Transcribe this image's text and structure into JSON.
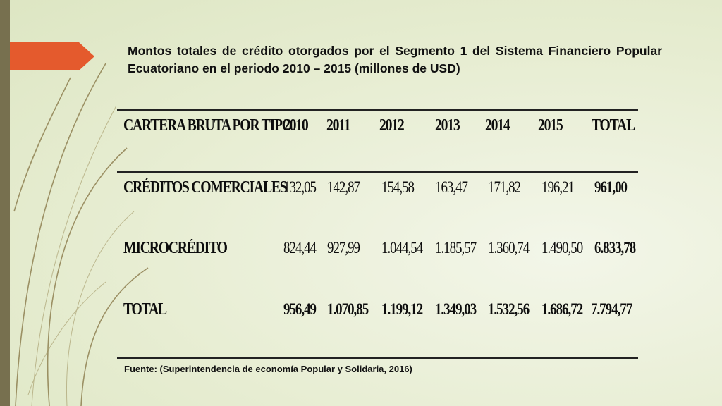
{
  "slide": {
    "title": "Montos totales de crédito  otorgados por el Segmento 1 del Sistema Financiero Popular Ecuatoriano en el periodo 2010 – 2015 (millones de USD)",
    "source": "Fuente: (Superintendencia de economía Popular y Solidaria, 2016)",
    "colors": {
      "left_bar": "#77704f",
      "arrow": "#e45a2d",
      "deco_lines": "#8a7a4a"
    }
  },
  "table": {
    "headers": [
      "CARTERA BRUTA POR TIPO",
      "2010",
      "2011",
      "2012",
      "2013",
      "2014",
      "2015",
      "TOTAL"
    ],
    "rows": [
      {
        "label": "CRÉDITOS COMERCIALES",
        "values": [
          "132,05",
          "142,87",
          "154,58",
          "163,47",
          "171,82",
          "196,21"
        ],
        "total": "961,00"
      },
      {
        "label": "MICROCRÉDITO",
        "values": [
          "824,44",
          "927,99",
          "1.044,54",
          "1.185,57",
          "1.360,74",
          "1.490,50"
        ],
        "total": "6.833,78"
      },
      {
        "label": "TOTAL",
        "values": [
          "956,49",
          "1.070,85",
          "1.199,12",
          "1.349,03",
          "1.532,56",
          "1.686,72"
        ],
        "total": "7.794,77"
      }
    ]
  }
}
